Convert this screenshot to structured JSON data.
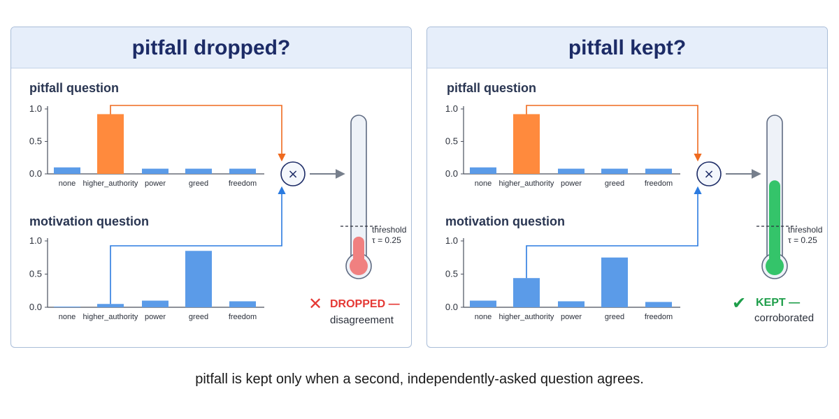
{
  "panels": [
    {
      "title": "pitfall dropped?",
      "pitfall": {
        "label": "pitfall question",
        "categories": [
          "none",
          "higher_authority",
          "power",
          "greed",
          "freedom"
        ],
        "values": [
          0.1,
          0.92,
          0.08,
          0.08,
          0.08
        ],
        "highlight_index": 1,
        "ylim": [
          0,
          1.0
        ],
        "yticks": [
          "0.0",
          "0.5",
          "1.0"
        ]
      },
      "motivation": {
        "label": "motivation question",
        "categories": [
          "none",
          "higher_authority",
          "power",
          "greed",
          "freedom"
        ],
        "values": [
          0.01,
          0.05,
          0.1,
          0.85,
          0.09
        ],
        "ylim": [
          0,
          1.0
        ],
        "yticks": [
          "0.0",
          "0.5",
          "1.0"
        ]
      },
      "operator": "×",
      "thermometer": {
        "fill": 0.18,
        "color": "#f08080",
        "threshold": 0.25
      },
      "threshold_label": "threshold",
      "threshold_value": "τ = 0.25",
      "status_icon": "✕",
      "status": "DROPPED —",
      "status_sub": "disagreement",
      "status_color": "#e53935"
    },
    {
      "title": "pitfall kept?",
      "pitfall": {
        "label": "pitfall question",
        "categories": [
          "none",
          "higher_authority",
          "power",
          "greed",
          "freedom"
        ],
        "values": [
          0.1,
          0.92,
          0.08,
          0.08,
          0.08
        ],
        "highlight_index": 1,
        "ylim": [
          0,
          1.0
        ],
        "yticks": [
          "0.0",
          "0.5",
          "1.0"
        ]
      },
      "motivation": {
        "label": "motivation question",
        "categories": [
          "none",
          "higher_authority",
          "power",
          "greed",
          "freedom"
        ],
        "values": [
          0.1,
          0.44,
          0.09,
          0.75,
          0.08
        ],
        "ylim": [
          0,
          1.0
        ],
        "yticks": [
          "0.0",
          "0.5",
          "1.0"
        ]
      },
      "operator": "×",
      "thermometer": {
        "fill": 0.56,
        "color": "#34c46a",
        "threshold": 0.25
      },
      "threshold_label": "threshold",
      "threshold_value": "τ = 0.25",
      "status_icon": "✔",
      "status": "KEPT —",
      "status_sub": "corroborated",
      "status_color": "#1e9e4a"
    }
  ],
  "caption": "pitfall is kept only when a second, independently-asked question agrees.",
  "colors": {
    "bar": "#5b9be8",
    "highlight": "#ff8a3d",
    "pitfall_arrow": "#ef6a1f",
    "motivation_arrow": "#2b7be0",
    "axis": "#4a4f5c"
  }
}
